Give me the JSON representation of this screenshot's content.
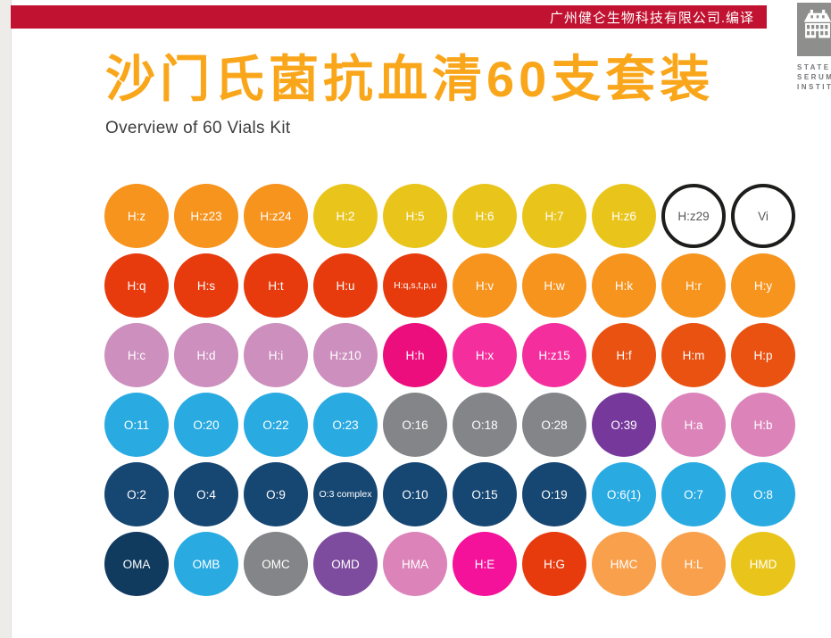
{
  "top_bar": {
    "text": "广州健仑生物科技有限公司.编译",
    "bg": "#C11331",
    "text_color": "#FFFFFF"
  },
  "logo": {
    "icon": "ssi-building-icon",
    "square_color": "#8E8E8C",
    "lines": [
      "STATENS",
      "SERUM",
      "INSTITUT"
    ],
    "text_color": "#76777A"
  },
  "title": {
    "text": "沙门氏菌抗血清60支套装",
    "color": "#F9A61B"
  },
  "subtitle": {
    "text": "Overview of 60 Vials Kit",
    "color": "#3E3E3E"
  },
  "palette": {
    "orange": "#F7941E",
    "lightOrange": "#F9A04C",
    "yellow": "#E9C51C",
    "redOrange": "#E73B0E",
    "orangeRed": "#E95211",
    "mauve": "#CC8FBE",
    "magenta": "#EC0E7D",
    "pink": "#F42F9D",
    "brightPink": "#F4129B",
    "rose": "#DC84BA",
    "lightBlue": "#29ABE2",
    "gray": "#838588",
    "purple": "#76389B",
    "violet": "#7E4C9E",
    "navy": "#164672",
    "darkNavy": "#113A5F",
    "outline_border": "#1D1D1B",
    "outline_text": "#58595B"
  },
  "vials": {
    "rows": [
      [
        {
          "label": "H:z",
          "color": "orange"
        },
        {
          "label": "H:z23",
          "color": "orange"
        },
        {
          "label": "H:z24",
          "color": "orange"
        },
        {
          "label": "H:2",
          "color": "yellow"
        },
        {
          "label": "H:5",
          "color": "yellow"
        },
        {
          "label": "H:6",
          "color": "yellow"
        },
        {
          "label": "H:7",
          "color": "yellow"
        },
        {
          "label": "H:z6",
          "color": "yellow"
        },
        {
          "label": "H:z29",
          "outline": true
        },
        {
          "label": "Vi",
          "outline": true
        }
      ],
      [
        {
          "label": "H:q",
          "color": "redOrange"
        },
        {
          "label": "H:s",
          "color": "redOrange"
        },
        {
          "label": "H:t",
          "color": "redOrange"
        },
        {
          "label": "H:u",
          "color": "redOrange"
        },
        {
          "label": "H:q,s,t,p,u",
          "color": "redOrange"
        },
        {
          "label": "H:v",
          "color": "orange"
        },
        {
          "label": "H:w",
          "color": "orange"
        },
        {
          "label": "H:k",
          "color": "orange"
        },
        {
          "label": "H:r",
          "color": "orange"
        },
        {
          "label": "H:y",
          "color": "orange"
        }
      ],
      [
        {
          "label": "H:c",
          "color": "mauve"
        },
        {
          "label": "H:d",
          "color": "mauve"
        },
        {
          "label": "H:i",
          "color": "mauve"
        },
        {
          "label": "H:z10",
          "color": "mauve"
        },
        {
          "label": "H:h",
          "color": "magenta"
        },
        {
          "label": "H:x",
          "color": "pink"
        },
        {
          "label": "H:z15",
          "color": "pink"
        },
        {
          "label": "H:f",
          "color": "orangeRed"
        },
        {
          "label": "H:m",
          "color": "orangeRed"
        },
        {
          "label": "H:p",
          "color": "orangeRed"
        }
      ],
      [
        {
          "label": "O:11",
          "color": "lightBlue"
        },
        {
          "label": "O:20",
          "color": "lightBlue"
        },
        {
          "label": "O:22",
          "color": "lightBlue"
        },
        {
          "label": "O:23",
          "color": "lightBlue"
        },
        {
          "label": "O:16",
          "color": "gray"
        },
        {
          "label": "O:18",
          "color": "gray"
        },
        {
          "label": "O:28",
          "color": "gray"
        },
        {
          "label": "O:39",
          "color": "purple"
        },
        {
          "label": "H:a",
          "color": "rose"
        },
        {
          "label": "H:b",
          "color": "rose"
        }
      ],
      [
        {
          "label": "O:2",
          "color": "navy"
        },
        {
          "label": "O:4",
          "color": "navy"
        },
        {
          "label": "O:9",
          "color": "navy"
        },
        {
          "label": "O:3 complex",
          "color": "navy"
        },
        {
          "label": "O:10",
          "color": "navy"
        },
        {
          "label": "O:15",
          "color": "navy"
        },
        {
          "label": "O:19",
          "color": "navy"
        },
        {
          "label": "O:6(1)",
          "color": "lightBlue"
        },
        {
          "label": "O:7",
          "color": "lightBlue"
        },
        {
          "label": "O:8",
          "color": "lightBlue"
        }
      ],
      [
        {
          "label": "OMA",
          "color": "darkNavy"
        },
        {
          "label": "OMB",
          "color": "lightBlue"
        },
        {
          "label": "OMC",
          "color": "gray"
        },
        {
          "label": "OMD",
          "color": "violet"
        },
        {
          "label": "HMA",
          "color": "rose"
        },
        {
          "label": "H:E",
          "color": "brightPink"
        },
        {
          "label": "H:G",
          "color": "redOrange"
        },
        {
          "label": "HMC",
          "color": "lightOrange"
        },
        {
          "label": "H:L",
          "color": "lightOrange"
        },
        {
          "label": "HMD",
          "color": "yellow"
        }
      ]
    ]
  }
}
